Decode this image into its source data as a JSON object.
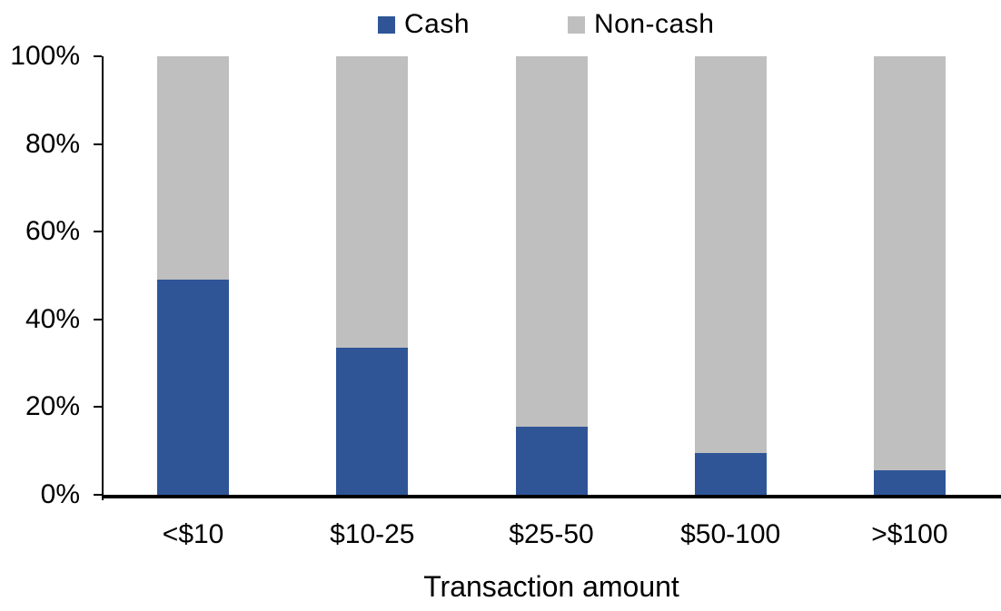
{
  "chart_data": {
    "type": "bar",
    "subtype": "stacked-100-percent",
    "title": "",
    "xlabel": "Transaction amount",
    "ylabel": "",
    "categories": [
      "<$10",
      "$10-25",
      "$25-50",
      "$50-100",
      ">$100"
    ],
    "series": [
      {
        "name": "Cash",
        "color": "#2F5597",
        "values": [
          49,
          33.5,
          15.5,
          9.5,
          5.5
        ]
      },
      {
        "name": "Non-cash",
        "color": "#BFBFBF",
        "values": [
          51,
          66.5,
          84.5,
          90.5,
          94.5
        ]
      }
    ],
    "y_axis": {
      "tick_labels": [
        "0%",
        "20%",
        "40%",
        "60%",
        "80%",
        "100%"
      ],
      "tick_values": [
        0,
        20,
        40,
        60,
        80,
        100
      ],
      "ylim": [
        0,
        100
      ]
    },
    "legend_position": "top",
    "grid": false,
    "colors": {
      "axis": "#000000",
      "text": "#000000",
      "background": "#FFFFFF"
    }
  }
}
